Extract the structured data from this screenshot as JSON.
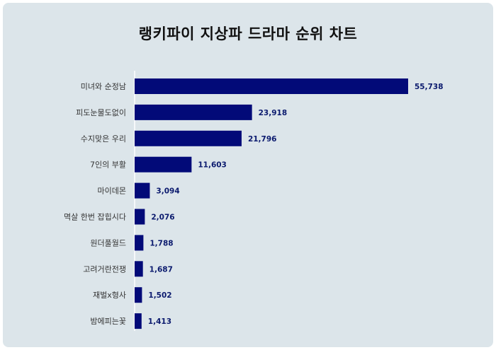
{
  "chart_data": {
    "type": "bar",
    "orientation": "horizontal",
    "title": "랭키파이 지상파 드라마 순위 차트",
    "categories": [
      "미녀와 순정남",
      "피도눈물도없이",
      "수지맞은 우리",
      "7인의 부활",
      "마이데몬",
      "멱살 한번 잡힙시다",
      "원더풀월드",
      "고려거란전쟁",
      "재벌x형사",
      "밤에피는꽃"
    ],
    "values": [
      55738,
      23918,
      21796,
      11603,
      3094,
      2076,
      1788,
      1687,
      1502,
      1413
    ],
    "value_labels": [
      "55,738",
      "23,918",
      "21,796",
      "11,603",
      "3,094",
      "2,076",
      "1,788",
      "1,687",
      "1,502",
      "1,413"
    ],
    "xlim": [
      0,
      55738
    ],
    "bar_color": "#020a78",
    "grid": false,
    "legend": "none"
  }
}
